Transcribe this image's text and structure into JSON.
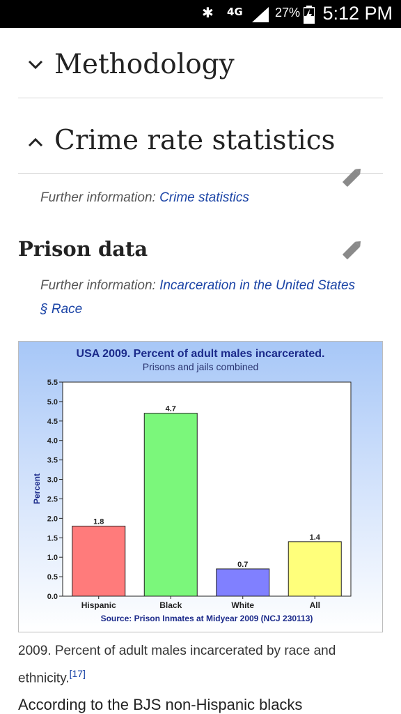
{
  "status_bar": {
    "network": "4G",
    "battery": "27%",
    "time": "5:12 PM"
  },
  "sections": [
    {
      "title": "Methodology",
      "expanded": false
    },
    {
      "title": "Crime rate statistics",
      "expanded": true
    }
  ],
  "crime_further": {
    "label": "Further information:",
    "link": "Crime statistics"
  },
  "prison": {
    "title": "Prison data",
    "further_label": "Further information:",
    "further_link_line1": "Incarceration in the United States",
    "further_link_line2": "§ Race"
  },
  "figure": {
    "caption": "2009. Percent of adult males incarcerated by race and ethnicity.",
    "ref": "[17]"
  },
  "body_text": "According to the BJS non-Hispanic blacks",
  "chart_data": {
    "type": "bar",
    "title": "USA 2009. Percent of adult males incarcerated.",
    "subtitle": "Prisons and jails combined",
    "ylabel": "Percent",
    "source": "Source: Prison Inmates at Midyear 2009 (NCJ 230113)",
    "categories": [
      "Hispanic",
      "Black",
      "White",
      "All"
    ],
    "values": [
      1.8,
      4.7,
      0.7,
      1.4
    ],
    "value_labels": [
      "1.8",
      "4.7",
      "0.7",
      "1.4"
    ],
    "colors": [
      "#ff7b7b",
      "#7bf77b",
      "#8080ff",
      "#ffff7b"
    ],
    "ylim": [
      0,
      5.5
    ],
    "yticks": [
      "0.0",
      "0.5",
      "1.0",
      "1.5",
      "2.0",
      "2.5",
      "3.0",
      "3.5",
      "4.0",
      "4.5",
      "5.0",
      "5.5"
    ],
    "grid": false
  }
}
